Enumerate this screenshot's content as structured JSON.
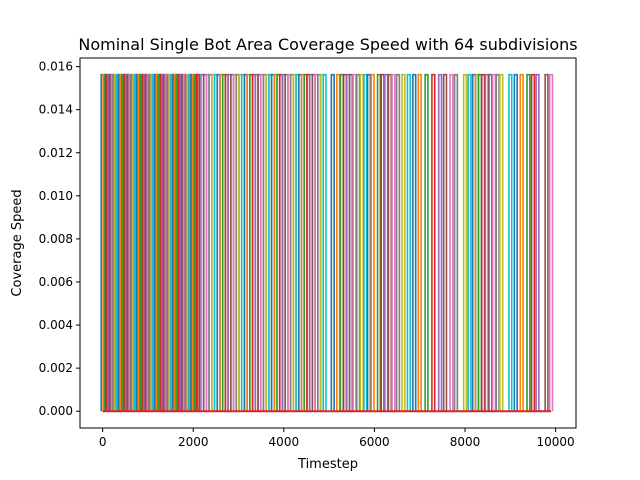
{
  "chart_data": {
    "type": "line",
    "title": "Nominal Single Bot Area Coverage Speed with 64 subdivisions",
    "xlabel": "Timestep",
    "ylabel": "Coverage Speed",
    "xlim": [
      -500,
      10450
    ],
    "ylim": [
      -0.00078,
      0.0164
    ],
    "xticks": [
      0,
      2000,
      4000,
      6000,
      8000,
      10000
    ],
    "xtick_labels": [
      "0",
      "2000",
      "4000",
      "6000",
      "8000",
      "10000"
    ],
    "yticks": [
      0.0,
      0.002,
      0.004,
      0.006,
      0.008,
      0.01,
      0.012,
      0.014,
      0.016
    ],
    "ytick_labels": [
      "0.000",
      "0.002",
      "0.004",
      "0.006",
      "0.008",
      "0.010",
      "0.012",
      "0.014",
      "0.016"
    ],
    "grid": false,
    "legend": false,
    "baseline": 0.0,
    "spike_height": 0.015625,
    "n_series": 64,
    "palette": [
      "#1f77b4",
      "#ff7f0e",
      "#2ca02c",
      "#d62728",
      "#9467bd",
      "#8c564b",
      "#e377c2",
      "#7f7f7f",
      "#bcbd22",
      "#17becf"
    ],
    "x_start": 0,
    "x_end": 9900,
    "spike_timesteps": [
      0,
      40,
      80,
      110,
      150,
      190,
      230,
      260,
      300,
      340,
      380,
      420,
      460,
      500,
      540,
      580,
      620,
      660,
      700,
      740,
      780,
      820,
      860,
      900,
      940,
      980,
      1020,
      1060,
      1100,
      1140,
      1180,
      1220,
      1260,
      1300,
      1340,
      1380,
      1420,
      1460,
      1500,
      1540,
      1580,
      1620,
      1660,
      1700,
      1740,
      1780,
      1820,
      1860,
      1900,
      1940,
      1980,
      2020,
      2060,
      2100,
      2200,
      2260,
      2320,
      2380,
      2440,
      2500,
      2560,
      2620,
      2680,
      2740,
      2800,
      2860,
      2920,
      2980,
      3040,
      3100,
      3160,
      3220,
      3280,
      3340,
      3400,
      3460,
      3520,
      3580,
      3640,
      3700,
      3760,
      3820,
      3880,
      3940,
      4000,
      4060,
      4120,
      4180,
      4240,
      4300,
      4360,
      4420,
      4480,
      4540,
      4600,
      4660,
      4720,
      4780,
      4840,
      4900,
      5080,
      5200,
      5280,
      5350,
      5420,
      5480,
      5560,
      5640,
      5720,
      5800,
      5880,
      5960,
      6100,
      6180,
      6260,
      6340,
      6420,
      6520,
      6640,
      6760,
      6880,
      7000,
      7150,
      7300,
      7450,
      7560,
      7700,
      7800,
      8000,
      8100,
      8200,
      8260,
      8330,
      8400,
      8480,
      8560,
      8640,
      8720,
      8800,
      9000,
      9120,
      9250,
      9400,
      9500,
      9600,
      9800,
      9900
    ]
  }
}
